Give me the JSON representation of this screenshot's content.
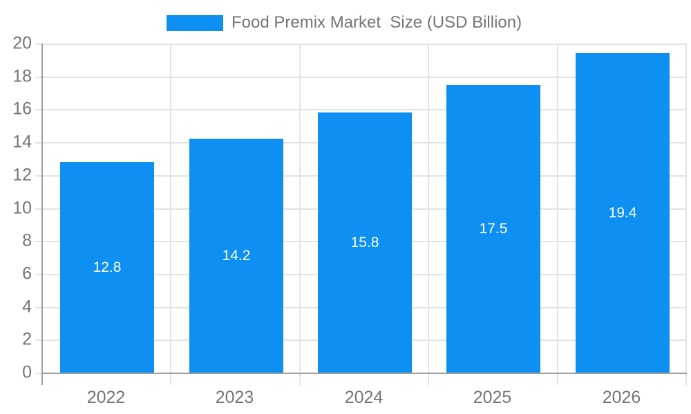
{
  "legend": {
    "label": "Food Premix Market  Size (USD Billion)"
  },
  "chart_data": {
    "type": "bar",
    "title": "Food Premix Market  Size (USD Billion)",
    "categories": [
      "2022",
      "2023",
      "2024",
      "2025",
      "2026"
    ],
    "values": [
      12.8,
      14.2,
      15.8,
      17.5,
      19.4
    ],
    "value_labels": [
      "12.8",
      "14.2",
      "15.8",
      "17.5",
      "19.4"
    ],
    "xlabel": "",
    "ylabel": "",
    "ylim": [
      0,
      20
    ],
    "yticks": [
      0,
      2,
      4,
      6,
      8,
      10,
      12,
      14,
      16,
      18,
      20
    ],
    "grid": true,
    "legend_position": "top",
    "colors": {
      "bar": "#0d90f2",
      "value_label": "#ffffff",
      "axis_text": "#757575",
      "grid": "#e3e3e3",
      "axis_line": "#a0a0a0"
    }
  }
}
